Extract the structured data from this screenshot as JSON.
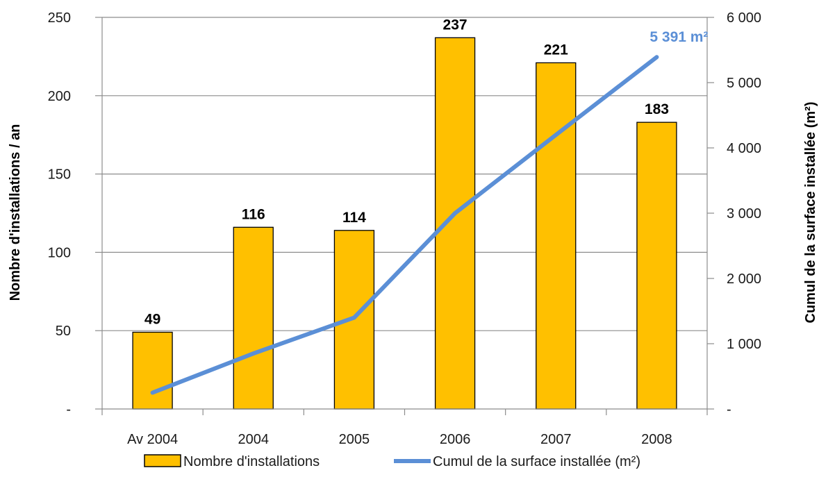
{
  "chart_data": {
    "type": "bar",
    "categories": [
      "Av 2004",
      "2004",
      "2005",
      "2006",
      "2007",
      "2008"
    ],
    "series": [
      {
        "name": "Nombre d'installations",
        "type": "bar",
        "axis": "left",
        "color": "#FFC000",
        "values": [
          49,
          116,
          114,
          237,
          221,
          183
        ]
      },
      {
        "name": "Cumul de la surface installée (m²)",
        "type": "line",
        "axis": "right",
        "color": "#5B8FD6",
        "values": [
          250,
          850,
          1400,
          3000,
          4200,
          5391
        ]
      }
    ],
    "data_labels": [
      "49",
      "116",
      "114",
      "237",
      "221",
      "183"
    ],
    "end_label": "5 391 m²",
    "ylabel": "Nombre d'installations  / an",
    "y2label": "Cumul de la surface  installée (m²)",
    "ylim": [
      0,
      250
    ],
    "y2lim": [
      0,
      6000
    ],
    "yticks": [
      {
        "value": 0,
        "label": "-"
      },
      {
        "value": 50,
        "label": "50"
      },
      {
        "value": 100,
        "label": "100"
      },
      {
        "value": 150,
        "label": "150"
      },
      {
        "value": 200,
        "label": "200"
      },
      {
        "value": 250,
        "label": "250"
      }
    ],
    "y2ticks": [
      {
        "value": 0,
        "label": "-"
      },
      {
        "value": 1000,
        "label": "1 000"
      },
      {
        "value": 2000,
        "label": "2 000"
      },
      {
        "value": 3000,
        "label": "3 000"
      },
      {
        "value": 4000,
        "label": "4 000"
      },
      {
        "value": 5000,
        "label": "5 000"
      },
      {
        "value": 6000,
        "label": "6 000"
      }
    ],
    "grid": true,
    "legend_position": "bottom"
  }
}
